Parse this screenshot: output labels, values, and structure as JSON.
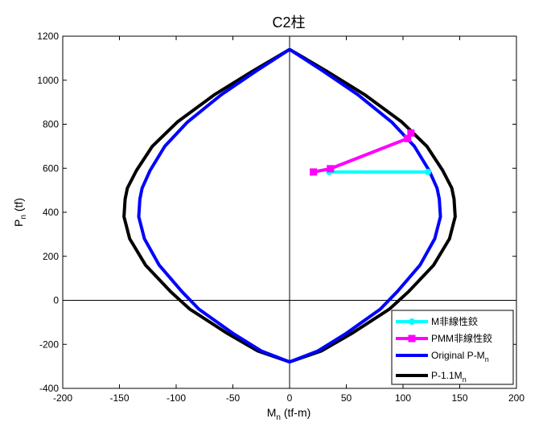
{
  "chart_data": {
    "type": "line",
    "title": "C2柱",
    "xlabel": {
      "main": "M",
      "sub": "n",
      "rest": " (tf-m)"
    },
    "ylabel": {
      "main": "P",
      "sub": "n",
      "rest": " (tf)"
    },
    "xlim": [
      -200,
      200
    ],
    "ylim": [
      -400,
      1200
    ],
    "xticks": [
      -200,
      -150,
      -100,
      -50,
      0,
      50,
      100,
      150,
      200
    ],
    "yticks": [
      -400,
      -200,
      0,
      200,
      400,
      600,
      800,
      1000,
      1200
    ],
    "grid": false,
    "zero_lines": true,
    "legend_position": "bottom-right",
    "series": [
      {
        "name": "M非線性鉸",
        "color": "#00ffff",
        "marker": "circle",
        "x": [
          35,
          122
        ],
        "y": [
          583,
          583
        ]
      },
      {
        "name": "PMM非線性鉸",
        "color": "#ff00ff",
        "marker": "square",
        "x": [
          21,
          36,
          104,
          107
        ],
        "y": [
          583,
          598,
          735,
          760
        ]
      },
      {
        "name": "Original P-M",
        "name_sub": "n",
        "color": "#0000ff",
        "marker": "none",
        "x": [
          0,
          -30,
          -60,
          -90,
          -110,
          -123,
          -130,
          -132,
          -133,
          -128,
          -115,
          -95,
          -80,
          -50,
          -25,
          0,
          25,
          50,
          80,
          95,
          115,
          128,
          133,
          132,
          130,
          123,
          110,
          90,
          60,
          30,
          0
        ],
        "y": [
          1140,
          1040,
          935,
          810,
          700,
          590,
          510,
          460,
          380,
          280,
          160,
          40,
          -40,
          -150,
          -230,
          -280,
          -230,
          -150,
          -40,
          40,
          160,
          280,
          380,
          460,
          510,
          590,
          700,
          810,
          935,
          1040,
          1140
        ]
      },
      {
        "name": "P-1.1M",
        "name_sub": "n",
        "color": "#000000",
        "marker": "none",
        "x": [
          0,
          -33,
          -66,
          -99,
          -121,
          -135,
          -143,
          -145,
          -146,
          -141,
          -127,
          -105,
          -88,
          -55,
          -28,
          0,
          28,
          55,
          88,
          105,
          127,
          141,
          146,
          145,
          143,
          135,
          121,
          99,
          66,
          33,
          0
        ],
        "y": [
          1140,
          1040,
          935,
          810,
          700,
          590,
          510,
          460,
          380,
          280,
          160,
          40,
          -40,
          -150,
          -230,
          -280,
          -230,
          -150,
          -40,
          40,
          160,
          280,
          380,
          460,
          510,
          590,
          700,
          810,
          935,
          1040,
          1140
        ]
      }
    ]
  }
}
